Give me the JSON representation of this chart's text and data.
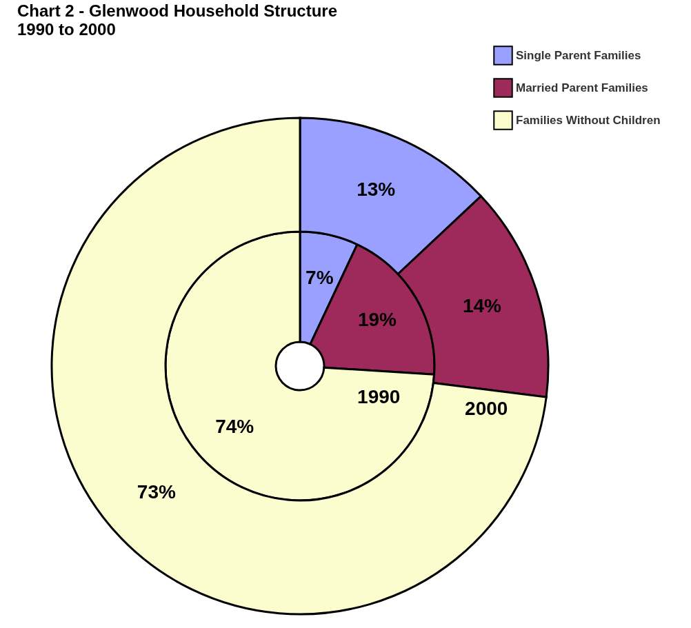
{
  "chart_data": {
    "type": "donut",
    "title": "Chart 2 - Glenwood Household Structure",
    "subtitle": "1990 to 2000",
    "categories": [
      "Single Parent Families",
      "Married Parent Families",
      "Families Without Children"
    ],
    "colors": [
      "#99a0ff",
      "#9e2a5c",
      "#fbfdce"
    ],
    "series": [
      {
        "name": "1990",
        "values": [
          7,
          19,
          74
        ],
        "value_labels": [
          "7%",
          "19%",
          "74%"
        ]
      },
      {
        "name": "2000",
        "values": [
          13,
          14,
          73
        ],
        "value_labels": [
          "13%",
          "14%",
          "73%"
        ]
      }
    ],
    "legend": "top right"
  }
}
